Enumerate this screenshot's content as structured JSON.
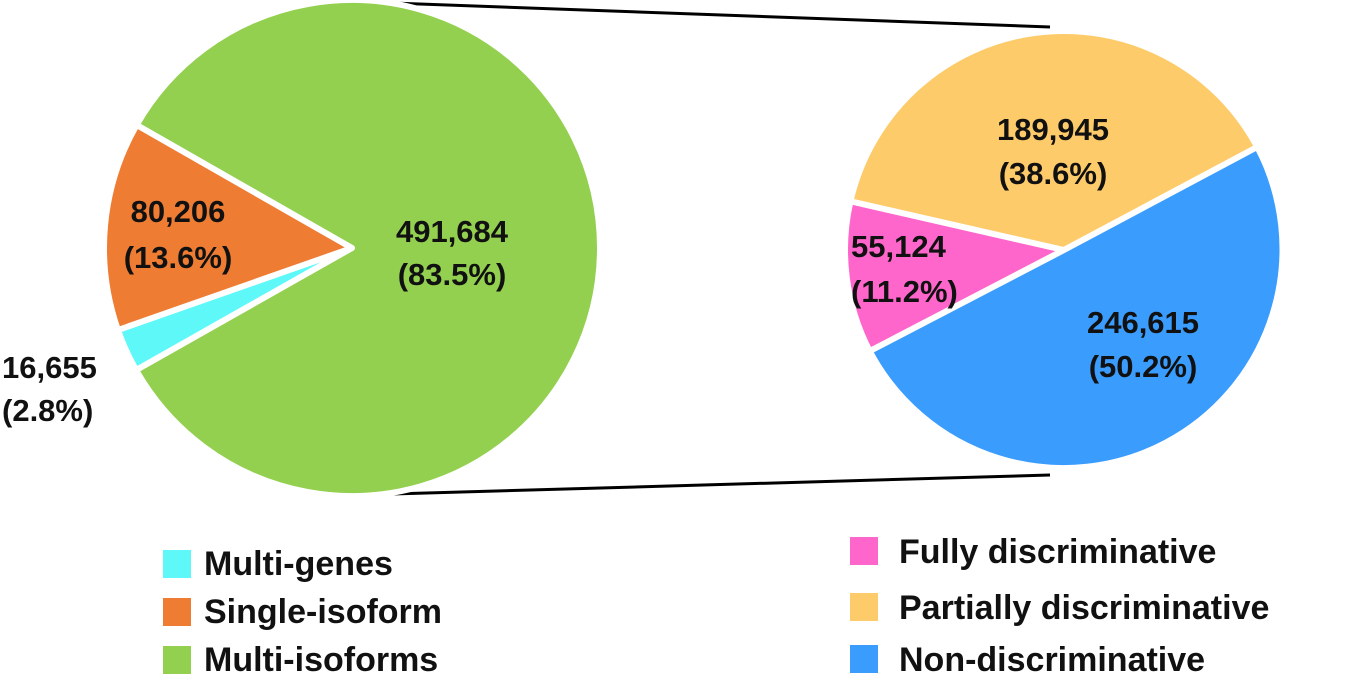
{
  "chart_data": [
    {
      "type": "pie",
      "slices": [
        {
          "name": "Multi-genes",
          "value": 16655,
          "percent_label": "(2.8%)",
          "value_label": "16,655",
          "color": "#5ff8f8"
        },
        {
          "name": "Single-isoform",
          "value": 80206,
          "percent_label": "(13.6%)",
          "value_label": "80,206",
          "color": "#ef7c33"
        },
        {
          "name": "Multi-isoforms",
          "value": 491684,
          "percent_label": "(83.5%)",
          "value_label": "491,684",
          "color": "#93d04f"
        }
      ],
      "legend": [
        "Multi-genes",
        "Single-isoform",
        "Multi-isoforms"
      ],
      "legend_position": "bottom-left"
    },
    {
      "type": "pie",
      "slices": [
        {
          "name": "Fully discriminative",
          "value": 55124,
          "percent_label": "(11.2%)",
          "value_label": "55,124",
          "color": "#ff66cc"
        },
        {
          "name": "Partially discriminative",
          "value": 189945,
          "percent_label": "(38.6%)",
          "value_label": "189,945",
          "color": "#fecb6a"
        },
        {
          "name": "Non-discriminative",
          "value": 246615,
          "percent_label": "(50.2%)",
          "value_label": "246,615",
          "color": "#3a9cfd"
        }
      ],
      "legend": [
        "Fully discriminative",
        "Partially discriminative",
        "Non-discriminative"
      ],
      "legend_position": "bottom-right"
    }
  ]
}
